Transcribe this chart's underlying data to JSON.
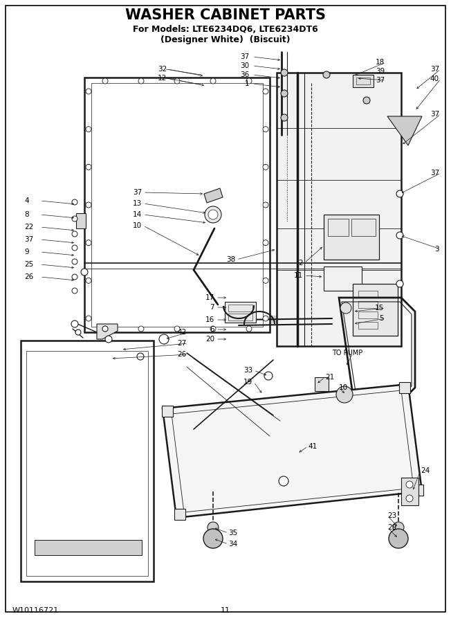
{
  "title": "WASHER CABINET PARTS",
  "subtitle1": "For Models: LTE6234DQ6, LTE6234DT6",
  "subtitle2": "(Designer White)  (Biscuit)",
  "footer_left": "W10116721",
  "footer_center": "11",
  "bg_color": "#ffffff",
  "lc": "#1a1a1a",
  "title_fontsize": 15,
  "subtitle_fontsize": 9,
  "footer_fontsize": 8,
  "label_fontsize": 7.5,
  "fig_width": 6.52,
  "fig_height": 9.0,
  "dpi": 100
}
